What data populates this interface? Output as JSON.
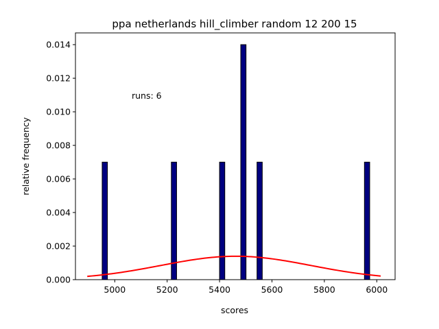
{
  "chart_data": {
    "type": "bar",
    "title": "ppa netherlands hill_climber random 12 200 15",
    "xlabel": "scores",
    "ylabel": "relative frequency",
    "annotation": "runs: 6",
    "xlim": [
      4850,
      6070
    ],
    "ylim": [
      0,
      0.0147
    ],
    "xticks": [
      5000,
      5200,
      5400,
      5600,
      5800,
      6000
    ],
    "yticks": [
      0.0,
      0.002,
      0.004,
      0.006,
      0.008,
      0.01,
      0.012,
      0.014
    ],
    "xtick_labels": [
      "5000",
      "5200",
      "5400",
      "5600",
      "5800",
      "6000"
    ],
    "ytick_labels": [
      "0.000",
      "0.002",
      "0.004",
      "0.006",
      "0.008",
      "0.010",
      "0.012",
      "0.014"
    ],
    "bin_width": 20,
    "bars": [
      {
        "x": 4962,
        "value": 0.007
      },
      {
        "x": 5226,
        "value": 0.007
      },
      {
        "x": 5410,
        "value": 0.007
      },
      {
        "x": 5491,
        "value": 0.014
      },
      {
        "x": 5553,
        "value": 0.007
      },
      {
        "x": 5963,
        "value": 0.007
      }
    ],
    "bar_color": "#000080",
    "bar_edge_color": "#000000",
    "fit_curve": {
      "type": "normal",
      "mean": 5462,
      "std": 286,
      "x_range": [
        4895,
        6015
      ],
      "color": "#ff0000"
    }
  }
}
